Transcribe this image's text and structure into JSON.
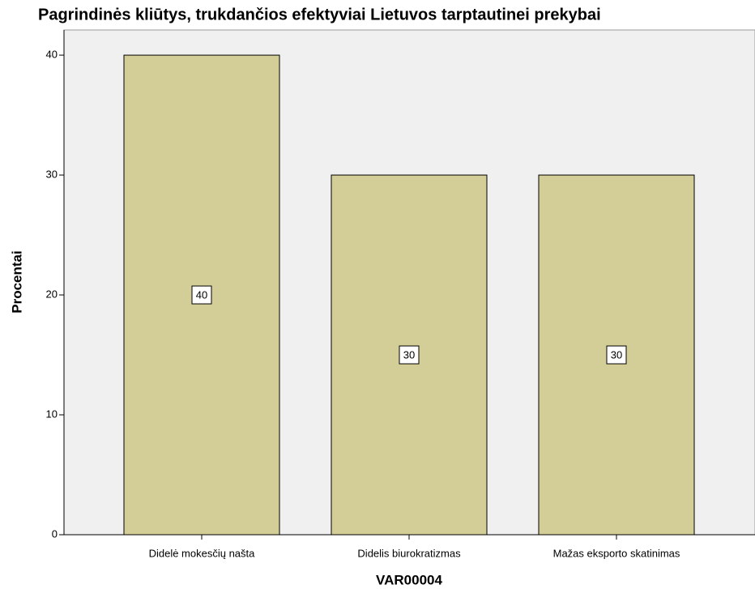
{
  "chart_data": {
    "type": "bar",
    "title": "Pagrindinės kliūtys, trukdančios efektyviai Lietuvos tarptautinei prekybai",
    "x_label": "VAR00004",
    "y_label": "Procentai",
    "categories": [
      "Didelė mokesčių našta",
      "Didelis biurokratizmas",
      "Mažas eksporto skatinimas"
    ],
    "values": [
      40,
      30,
      30
    ],
    "color": "#d3ce97",
    "ylim": [
      0,
      42.1
    ],
    "yticks": [
      0,
      10,
      20,
      30,
      40
    ],
    "grid": false
  }
}
